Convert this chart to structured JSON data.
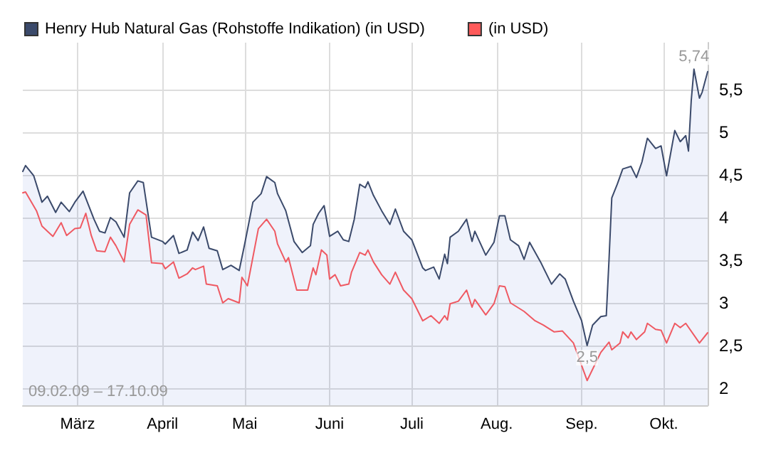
{
  "chart_data": {
    "type": "area",
    "xlim": [
      "--02-09",
      "--10-17"
    ],
    "ylim": [
      1.8,
      6.05
    ],
    "xticks": [
      {
        "value": "--03-01",
        "label": "März"
      },
      {
        "value": "--04-01",
        "label": "April"
      },
      {
        "value": "--05-01",
        "label": "Mai"
      },
      {
        "value": "--06-01",
        "label": "Juni"
      },
      {
        "value": "--07-01",
        "label": "Juli"
      },
      {
        "value": "--08-01",
        "label": "Aug."
      },
      {
        "value": "--09-01",
        "label": "Sep."
      },
      {
        "value": "--10-01",
        "label": "Okt."
      }
    ],
    "yticks": [
      2,
      {
        "value": 2.5,
        "label": "2,5"
      },
      3,
      {
        "value": 3.5,
        "label": "3,5"
      },
      4,
      {
        "value": 4.5,
        "label": "4,5"
      },
      5,
      {
        "value": 5.5,
        "label": "5,5"
      }
    ],
    "grid": true,
    "legend": "top left",
    "marker": "none",
    "line_style": "solid",
    "annotations": [
      "09.02.09 – 17.10.09",
      {
        "text": "5,74",
        "x": "--10-12",
        "y": 5.74
      },
      {
        "text": "2,5",
        "x": "--09-03",
        "y": 2.5
      }
    ],
    "series": [
      {
        "name": "Henry Hub Natural Gas (Rohstoffe Indikation) (in USD)",
        "color": "#3b4a6b",
        "x": [
          "--02-09",
          "--02-10",
          "--02-13",
          "--02-16",
          "--02-18",
          "--02-21",
          "--02-23",
          "--02-26",
          "--02-28",
          "--03-03",
          "--03-07",
          "--03-09",
          "--03-11",
          "--03-13",
          "--03-15",
          "--03-18",
          "--03-20",
          "--03-23",
          "--03-25",
          "--03-28",
          "--04-01",
          "--04-02",
          "--04-05",
          "--04-07",
          "--04-10",
          "--04-12",
          "--04-14",
          "--04-16",
          "--04-18",
          "--04-21",
          "--04-23",
          "--04-26",
          "--04-29",
          "--05-01",
          "--05-04",
          "--05-07",
          "--05-09",
          "--05-12",
          "--05-13",
          "--05-16",
          "--05-19",
          "--05-22",
          "--05-25",
          "--05-26",
          "--05-28",
          "--05-30",
          "--06-01",
          "--06-04",
          "--06-06",
          "--06-08",
          "--06-10",
          "--06-12",
          "--06-14",
          "--06-15",
          "--06-17",
          "--06-20",
          "--06-23",
          "--06-25",
          "--06-28",
          "--07-01",
          "--07-05",
          "--07-06",
          "--07-09",
          "--07-11",
          "--07-13",
          "--07-14",
          "--07-15",
          "--07-18",
          "--07-21",
          "--07-23",
          "--07-24",
          "--07-28",
          "--07-31",
          "--08-02",
          "--08-04",
          "--08-06",
          "--08-09",
          "--08-11",
          "--08-13",
          "--08-17",
          "--08-21",
          "--08-24",
          "--08-26",
          "--08-29",
          "--09-01",
          "--09-03",
          "--09-05",
          "--09-08",
          "--09-10",
          "--09-11",
          "--09-12",
          "--09-14",
          "--09-16",
          "--09-19",
          "--09-21",
          "--09-23",
          "--09-25",
          "--09-28",
          "--09-30",
          "--10-02",
          "--10-05",
          "--10-07",
          "--10-09",
          "--10-10",
          "--10-11",
          "--10-12",
          "--10-14",
          "--10-15",
          "--10-17"
        ],
        "values": [
          4.54,
          4.61,
          4.49,
          4.18,
          4.25,
          4.06,
          4.18,
          4.07,
          4.18,
          4.31,
          3.98,
          3.84,
          3.82,
          4.0,
          3.95,
          3.77,
          4.29,
          4.43,
          4.41,
          3.77,
          3.72,
          3.69,
          3.79,
          3.58,
          3.62,
          3.83,
          3.73,
          3.89,
          3.64,
          3.61,
          3.39,
          3.44,
          3.38,
          3.69,
          4.18,
          4.28,
          4.48,
          4.41,
          4.28,
          4.08,
          3.72,
          3.59,
          3.67,
          3.92,
          4.05,
          4.14,
          3.78,
          3.84,
          3.74,
          3.72,
          3.98,
          4.39,
          4.35,
          4.42,
          4.26,
          4.08,
          3.92,
          4.1,
          3.84,
          3.74,
          3.41,
          3.38,
          3.42,
          3.28,
          3.57,
          3.46,
          3.77,
          3.84,
          3.98,
          3.72,
          3.84,
          3.56,
          3.71,
          4.02,
          4.02,
          3.74,
          3.67,
          3.51,
          3.71,
          3.48,
          3.22,
          3.34,
          3.28,
          3.02,
          2.79,
          2.5,
          2.74,
          2.84,
          2.85,
          3.51,
          4.23,
          4.39,
          4.57,
          4.6,
          4.47,
          4.65,
          4.93,
          4.81,
          4.84,
          4.49,
          5.02,
          4.89,
          4.96,
          4.78,
          5.37,
          5.74,
          5.4,
          5.47,
          5.71
        ]
      },
      {
        "name": "(in USD)",
        "type": "line",
        "color": "#ff5a5a",
        "x": [
          "--02-09",
          "--02-10",
          "--02-14",
          "--02-16",
          "--02-20",
          "--02-23",
          "--02-25",
          "--02-28",
          "--03-02",
          "--03-04",
          "--03-06",
          "--03-08",
          "--03-11",
          "--03-13",
          "--03-15",
          "--03-18",
          "--03-20",
          "--03-23",
          "--03-26",
          "--03-28",
          "--04-01",
          "--04-02",
          "--04-05",
          "--04-07",
          "--04-10",
          "--04-12",
          "--04-13",
          "--04-16",
          "--04-17",
          "--04-21",
          "--04-23",
          "--04-25",
          "--04-29",
          "--04-30",
          "--05-02",
          "--05-06",
          "--05-09",
          "--05-12",
          "--05-13",
          "--05-16",
          "--05-17",
          "--05-20",
          "--05-24",
          "--05-26",
          "--05-27",
          "--05-29",
          "--05-31",
          "--06-01",
          "--06-03",
          "--06-05",
          "--06-08",
          "--06-09",
          "--06-12",
          "--06-14",
          "--06-15",
          "--06-17",
          "--06-20",
          "--06-23",
          "--06-25",
          "--06-28",
          "--07-01",
          "--07-05",
          "--07-08",
          "--07-11",
          "--07-13",
          "--07-14",
          "--07-15",
          "--07-18",
          "--07-21",
          "--07-23",
          "--07-24",
          "--07-28",
          "--07-31",
          "--08-02",
          "--08-04",
          "--08-06",
          "--08-11",
          "--08-15",
          "--08-18",
          "--08-22",
          "--08-25",
          "--08-29",
          "--09-03",
          "--09-08",
          "--09-11",
          "--09-12",
          "--09-15",
          "--09-16",
          "--09-18",
          "--09-19",
          "--09-21",
          "--09-24",
          "--09-25",
          "--09-28",
          "--09-30",
          "--10-02",
          "--10-05",
          "--10-07",
          "--10-09",
          "--10-14",
          "--10-17"
        ],
        "values": [
          4.29,
          4.3,
          4.08,
          3.9,
          3.78,
          3.94,
          3.79,
          3.87,
          3.88,
          4.05,
          3.79,
          3.61,
          3.6,
          3.77,
          3.67,
          3.48,
          3.92,
          4.09,
          4.03,
          3.47,
          3.46,
          3.4,
          3.48,
          3.29,
          3.34,
          3.41,
          3.39,
          3.43,
          3.22,
          3.2,
          3.0,
          3.05,
          3.0,
          3.3,
          3.2,
          3.87,
          3.98,
          3.84,
          3.69,
          3.48,
          3.53,
          3.15,
          3.15,
          3.41,
          3.33,
          3.62,
          3.56,
          3.28,
          3.33,
          3.2,
          3.22,
          3.36,
          3.59,
          3.56,
          3.62,
          3.48,
          3.33,
          3.22,
          3.36,
          3.15,
          3.05,
          2.79,
          2.85,
          2.76,
          2.85,
          2.8,
          2.99,
          3.02,
          3.15,
          2.95,
          3.04,
          2.86,
          2.99,
          3.2,
          3.19,
          3.0,
          2.9,
          2.79,
          2.74,
          2.66,
          2.67,
          2.53,
          2.09,
          2.42,
          2.54,
          2.45,
          2.53,
          2.66,
          2.59,
          2.66,
          2.57,
          2.66,
          2.76,
          2.69,
          2.68,
          2.53,
          2.76,
          2.71,
          2.76,
          2.53,
          2.65
        ]
      }
    ]
  }
}
